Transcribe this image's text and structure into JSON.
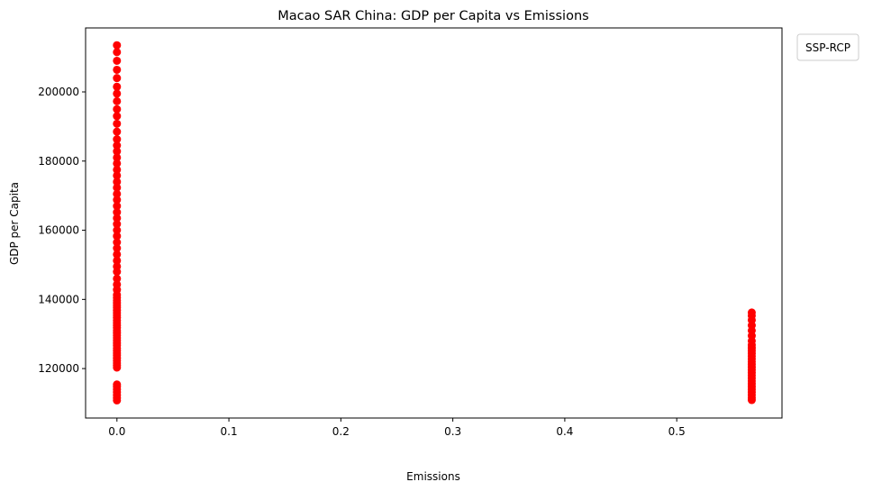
{
  "chart_data": {
    "type": "scatter",
    "title": "Macao SAR China: GDP per Capita vs Emissions",
    "xlabel": "Emissions",
    "ylabel": "GDP per Capita",
    "xlim": [
      -0.028,
      0.594
    ],
    "ylim": [
      105700,
      218500
    ],
    "x_ticks": [
      0.0,
      0.1,
      0.2,
      0.3,
      0.4,
      0.5
    ],
    "x_tick_labels": [
      "0.0",
      "0.1",
      "0.2",
      "0.3",
      "0.4",
      "0.5"
    ],
    "y_ticks": [
      120000,
      140000,
      160000,
      180000,
      200000
    ],
    "y_tick_labels": [
      "120000",
      "140000",
      "160000",
      "180000",
      "200000"
    ],
    "grid": false,
    "legend": {
      "title": "SSP-RCP",
      "placement": "outside-top-right",
      "entries": []
    },
    "marker_color": "#ff0000",
    "series": [
      {
        "x_value": 0.0,
        "y": [
          110800,
          111500,
          112300,
          113200,
          114000,
          114800,
          115400,
          120300,
          120900,
          121600,
          122300,
          123000,
          123800,
          124500,
          125200,
          125900,
          126700,
          127400,
          128100,
          128900,
          129600,
          130300,
          131000,
          131800,
          132500,
          133200,
          133900,
          134700,
          135400,
          136100,
          136800,
          137600,
          138300,
          139000,
          139700,
          140500,
          141300,
          142800,
          144300,
          146000,
          148000,
          149500,
          151200,
          153000,
          154800,
          156500,
          158300,
          160000,
          161800,
          163500,
          165200,
          167000,
          168800,
          170500,
          172300,
          174000,
          175800,
          177500,
          179300,
          181000,
          182800,
          184500,
          186300,
          188500,
          190800,
          193000,
          195000,
          197300,
          199500,
          201500,
          204000,
          206400,
          209000,
          211500,
          213500
        ]
      },
      {
        "x_value": 0.567,
        "y": [
          110900,
          111600,
          112400,
          113200,
          114000,
          114800,
          115600,
          116400,
          117200,
          118000,
          118800,
          119600,
          120400,
          121200,
          122000,
          122800,
          123600,
          124400,
          125200,
          126000,
          126800,
          128000,
          129500,
          131000,
          132500,
          134000,
          135300,
          136200
        ]
      }
    ]
  }
}
